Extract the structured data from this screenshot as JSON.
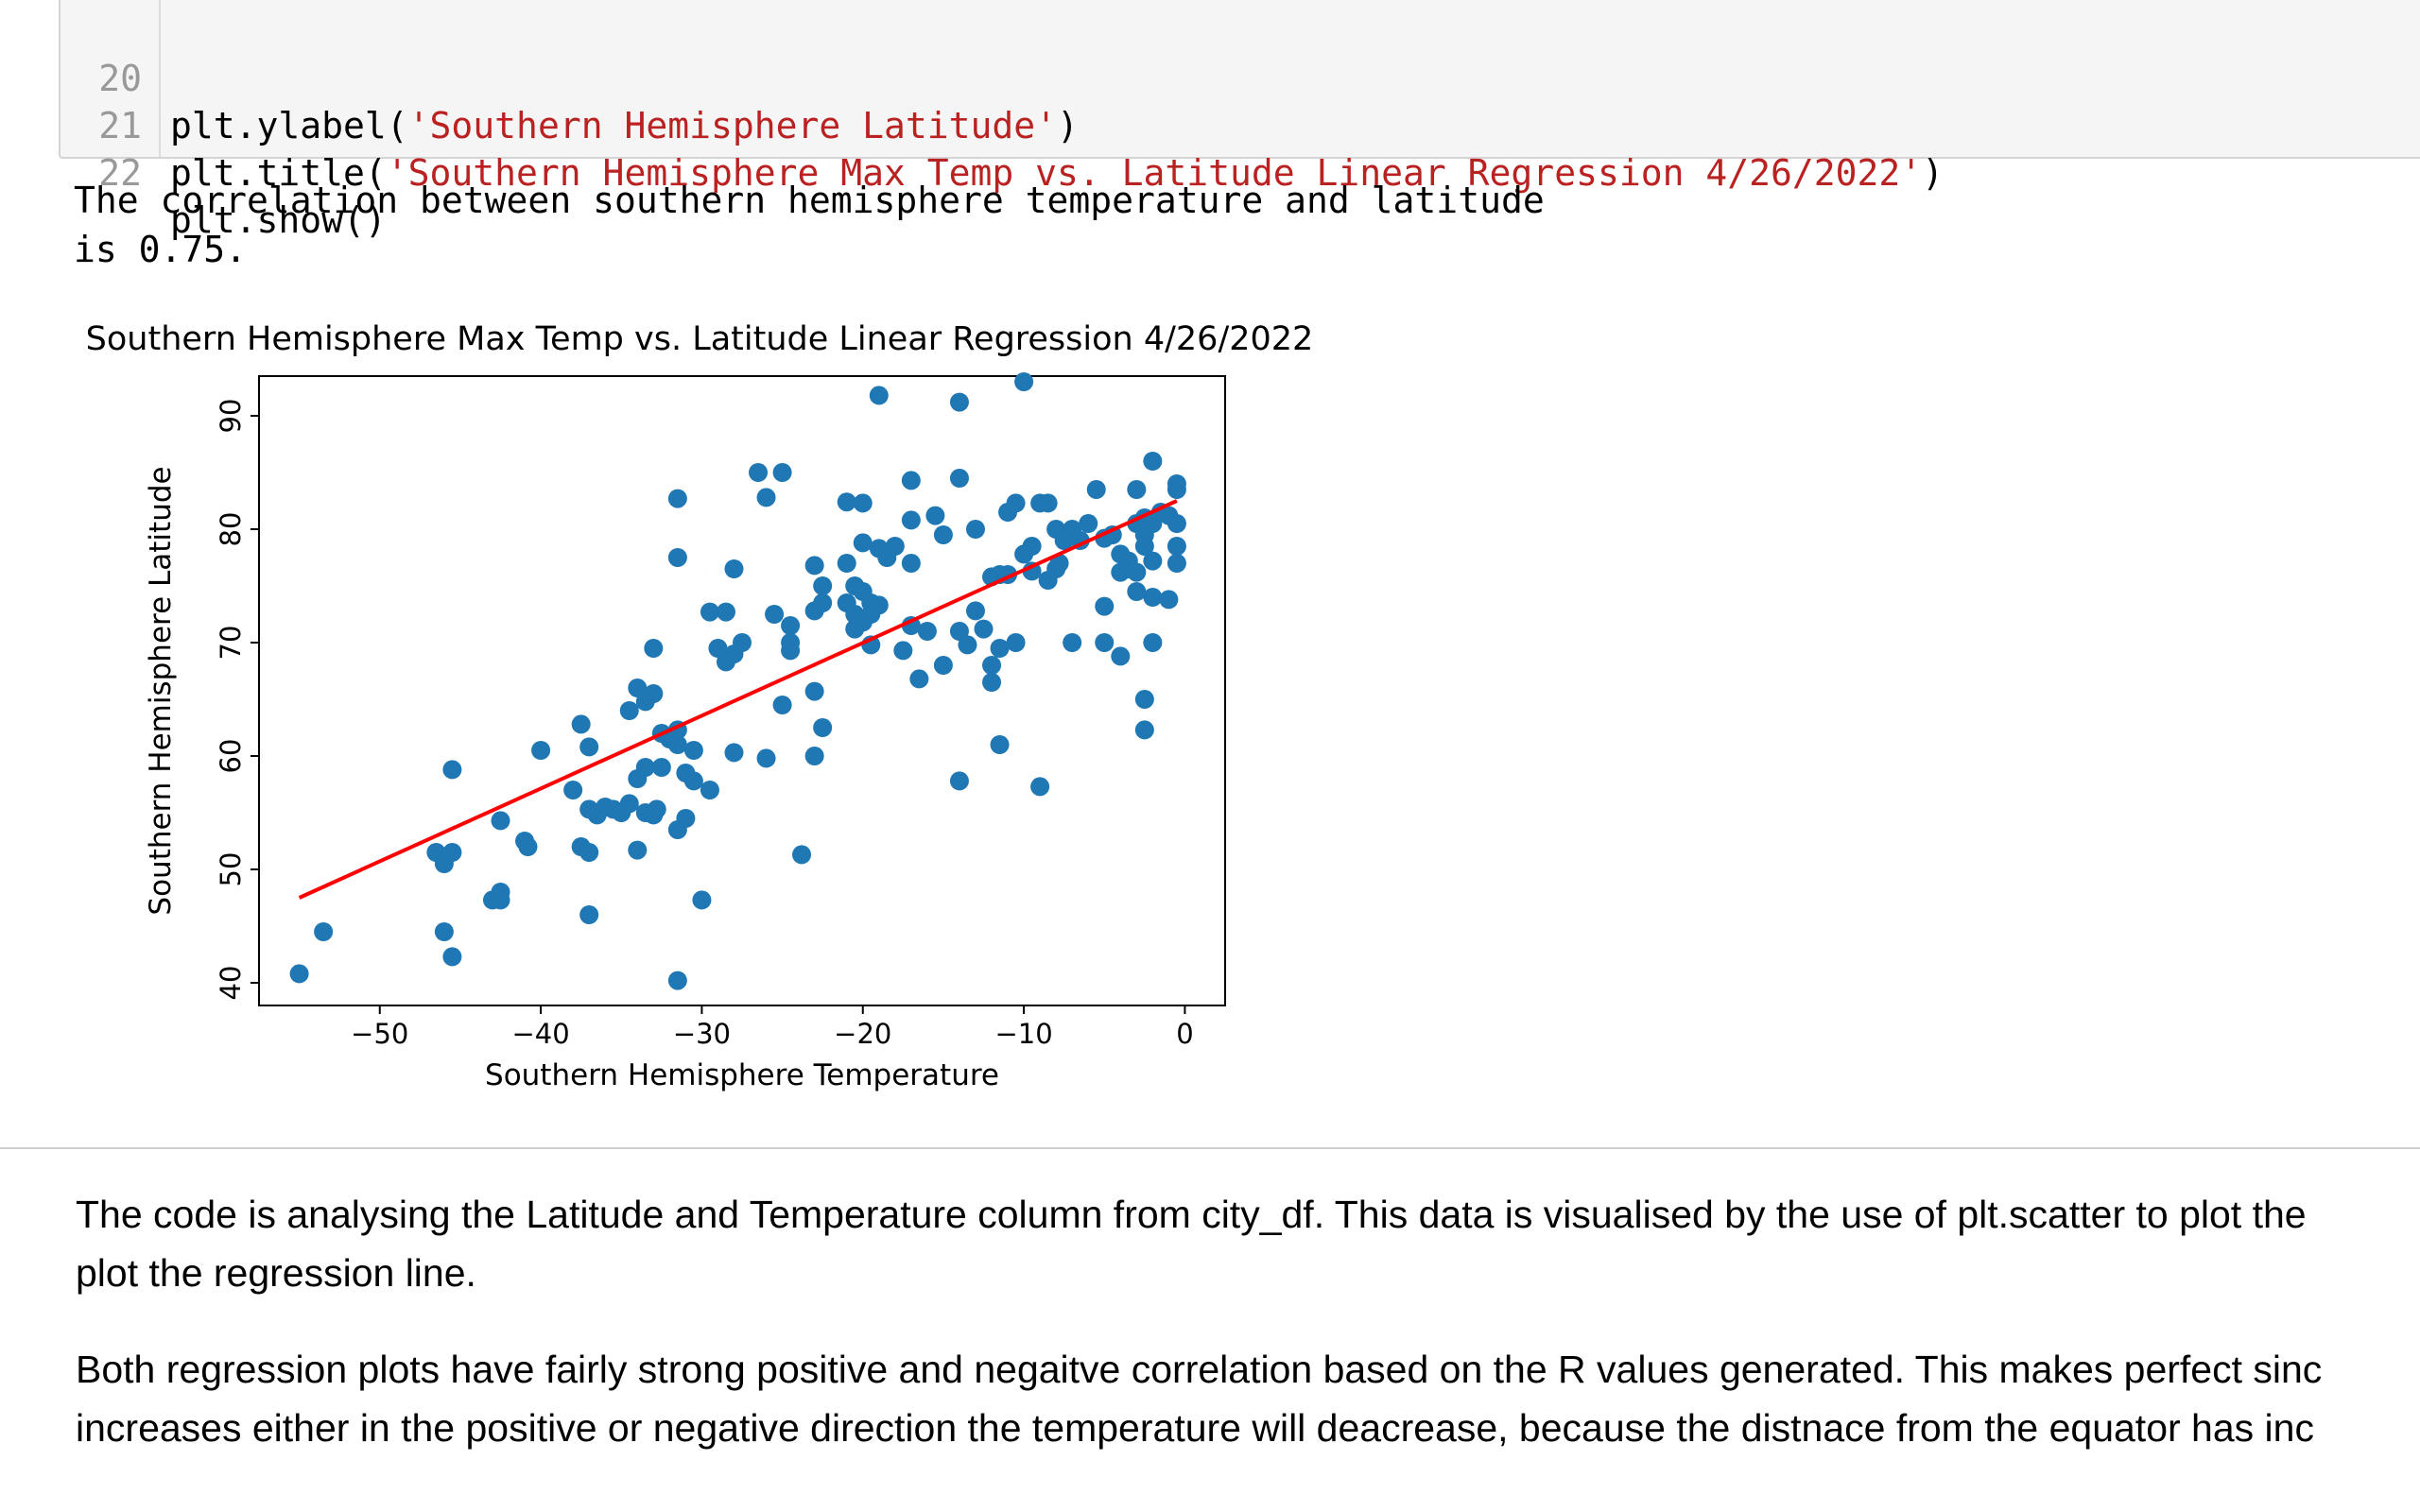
{
  "code_cell": {
    "lines": [
      {
        "num": "20",
        "pre": "plt.ylabel(",
        "str": "'Southern Hemisphere Latitude'",
        "post": ")"
      },
      {
        "num": "21",
        "pre": "plt.title(",
        "str": "'Southern Hemisphere Max Temp vs. Latitude Linear Regression 4/26/2022'",
        "post": ")"
      },
      {
        "num": "22",
        "pre": "plt.show()",
        "str": "",
        "post": ""
      }
    ]
  },
  "output": {
    "line1": "The correlation between southern hemisphere temperature and latitude",
    "line2": "is 0.75."
  },
  "chart_data": {
    "type": "scatter",
    "title": "Southern Hemisphere Max Temp vs. Latitude Linear Regression 4/26/2022",
    "xlabel": "Southern Hemisphere Temperature",
    "ylabel": "Southern Hemisphere Latitude",
    "xlim": [
      -57.5,
      2.5
    ],
    "ylim": [
      38,
      93.5
    ],
    "xticks": [
      -50,
      -40,
      -30,
      -20,
      -10,
      0
    ],
    "xtick_labels": [
      "−50",
      "−40",
      "−30",
      "−20",
      "−10",
      "0"
    ],
    "yticks": [
      40,
      50,
      60,
      70,
      80,
      90
    ],
    "yticks_labels": [
      "40",
      "50",
      "60",
      "70",
      "80",
      "90"
    ],
    "grid": false,
    "point_color": "#1f77b4",
    "line_color": "#ff0000",
    "regression": {
      "x": [
        -55,
        -0.5
      ],
      "y": [
        47.5,
        82.5
      ]
    },
    "points": [
      [
        -55,
        40.8
      ],
      [
        -53.5,
        44.5
      ],
      [
        -46,
        44.5
      ],
      [
        -45.5,
        42.3
      ],
      [
        -46.5,
        51.5
      ],
      [
        -46,
        50.5
      ],
      [
        -45.5,
        51.5
      ],
      [
        -45.5,
        58.8
      ],
      [
        -43,
        47.3
      ],
      [
        -42.5,
        48
      ],
      [
        -42.5,
        47.3
      ],
      [
        -42.5,
        54.3
      ],
      [
        -41,
        52.5
      ],
      [
        -40.8,
        52
      ],
      [
        -40,
        60.5
      ],
      [
        -38,
        57
      ],
      [
        -37.5,
        62.8
      ],
      [
        -37,
        60.8
      ],
      [
        -37,
        55.3
      ],
      [
        -37.5,
        52
      ],
      [
        -37,
        51.5
      ],
      [
        -36.5,
        54.8
      ],
      [
        -37,
        46
      ],
      [
        -36,
        55.5
      ],
      [
        -35.5,
        55.3
      ],
      [
        -35,
        55
      ],
      [
        -34.5,
        55.8
      ],
      [
        -34,
        58
      ],
      [
        -33.5,
        59
      ],
      [
        -33.5,
        55
      ],
      [
        -33,
        54.8
      ],
      [
        -32.8,
        55.3
      ],
      [
        -34,
        51.7
      ],
      [
        -34.5,
        64
      ],
      [
        -34,
        66
      ],
      [
        -33.5,
        64.8
      ],
      [
        -33,
        65.5
      ],
      [
        -33,
        69.5
      ],
      [
        -32.5,
        59
      ],
      [
        -32.5,
        62
      ],
      [
        -32,
        61.5
      ],
      [
        -31.5,
        62.3
      ],
      [
        -31.5,
        61
      ],
      [
        -31.5,
        53.5
      ],
      [
        -31,
        54.5
      ],
      [
        -31,
        58.5
      ],
      [
        -30.5,
        57.8
      ],
      [
        -30.5,
        60.5
      ],
      [
        -29.5,
        57
      ],
      [
        -31.5,
        40.2
      ],
      [
        -30,
        47.3
      ],
      [
        -31.5,
        82.7
      ],
      [
        -31.5,
        77.5
      ],
      [
        -29.5,
        72.7
      ],
      [
        -28.5,
        72.7
      ],
      [
        -28,
        76.5
      ],
      [
        -29,
        69.5
      ],
      [
        -28.5,
        68.3
      ],
      [
        -28,
        69
      ],
      [
        -27.5,
        70
      ],
      [
        -26.5,
        85
      ],
      [
        -26,
        82.8
      ],
      [
        -25,
        85
      ],
      [
        -25.5,
        72.5
      ],
      [
        -24.5,
        71.5
      ],
      [
        -24.5,
        70
      ],
      [
        -24.5,
        69.3
      ],
      [
        -25,
        64.5
      ],
      [
        -28,
        60.3
      ],
      [
        -26,
        59.8
      ],
      [
        -23.8,
        51.3
      ],
      [
        -23,
        60
      ],
      [
        -23,
        65.7
      ],
      [
        -22.5,
        62.5
      ],
      [
        -23,
        72.8
      ],
      [
        -22.5,
        73.5
      ],
      [
        -22.5,
        75
      ],
      [
        -23,
        76.8
      ],
      [
        -21,
        77
      ],
      [
        -21,
        82.4
      ],
      [
        -20,
        82.3
      ],
      [
        -20.5,
        75
      ],
      [
        -20,
        74.5
      ],
      [
        -21,
        73.5
      ],
      [
        -20.5,
        72.5
      ],
      [
        -20,
        71.8
      ],
      [
        -20.5,
        71.2
      ],
      [
        -19.5,
        73.5
      ],
      [
        -19.5,
        72.5
      ],
      [
        -19,
        73.3
      ],
      [
        -19.5,
        69.8
      ],
      [
        -20,
        78.8
      ],
      [
        -19,
        78.3
      ],
      [
        -18.5,
        77.5
      ],
      [
        -18,
        78.5
      ],
      [
        -19,
        91.8
      ],
      [
        -17,
        84.3
      ],
      [
        -17,
        80.8
      ],
      [
        -17,
        77
      ],
      [
        -15.5,
        81.2
      ],
      [
        -15,
        79.5
      ],
      [
        -14,
        84.5
      ],
      [
        -13,
        80
      ],
      [
        -14,
        91.2
      ],
      [
        -17.5,
        69.3
      ],
      [
        -17,
        71.5
      ],
      [
        -16,
        71
      ],
      [
        -16.5,
        66.8
      ],
      [
        -15,
        68
      ],
      [
        -14,
        71
      ],
      [
        -13.5,
        69.8
      ],
      [
        -13,
        72.8
      ],
      [
        -12.5,
        71.2
      ],
      [
        -11.5,
        76
      ],
      [
        -11,
        76
      ],
      [
        -12,
        75.8
      ],
      [
        -12,
        68
      ],
      [
        -11.5,
        69.5
      ],
      [
        -10.5,
        70
      ],
      [
        -12,
        66.5
      ],
      [
        -14,
        57.8
      ],
      [
        -11.5,
        61
      ],
      [
        -9,
        57.3
      ],
      [
        -11,
        81.5
      ],
      [
        -10.5,
        82.3
      ],
      [
        -9.5,
        78.5
      ],
      [
        -9,
        82.3
      ],
      [
        -8.5,
        82.3
      ],
      [
        -10,
        77.8
      ],
      [
        -9.5,
        76.3
      ],
      [
        -8.5,
        75.5
      ],
      [
        -8,
        76.5
      ],
      [
        -7.8,
        77
      ],
      [
        -8,
        80
      ],
      [
        -7.5,
        79
      ],
      [
        -7,
        80
      ],
      [
        -6.5,
        79
      ],
      [
        -6,
        80.5
      ],
      [
        -5.5,
        83.5
      ],
      [
        -5,
        79.2
      ],
      [
        -4.5,
        79.5
      ],
      [
        -4,
        77.8
      ],
      [
        -4,
        76.2
      ],
      [
        -3.5,
        77.2
      ],
      [
        -3.5,
        76.5
      ],
      [
        -3,
        76.2
      ],
      [
        -3,
        80.5
      ],
      [
        -3,
        83.5
      ],
      [
        -2.5,
        81
      ],
      [
        -2.5,
        79.5
      ],
      [
        -2.5,
        78.5
      ],
      [
        -2,
        77.2
      ],
      [
        -2,
        80.5
      ],
      [
        -1.5,
        81.5
      ],
      [
        -2,
        86
      ],
      [
        -1,
        81.2
      ],
      [
        -3,
        74.5
      ],
      [
        -2,
        74
      ],
      [
        -1,
        73.8
      ],
      [
        -5,
        73.2
      ],
      [
        -5,
        70
      ],
      [
        -4,
        68.8
      ],
      [
        -2,
        70
      ],
      [
        -7,
        70
      ],
      [
        -2.5,
        65
      ],
      [
        -2.5,
        62.3
      ],
      [
        -10,
        93
      ],
      [
        -0.5,
        84
      ],
      [
        -0.5,
        83.5
      ],
      [
        -0.5,
        80.5
      ],
      [
        -0.5,
        78.5
      ],
      [
        -0.5,
        77
      ]
    ]
  },
  "markdown": {
    "para1_line1": "The code is analysing the Latitude and Temperature column from city_df. This data is visualised by the use of plt.scatter to plot the",
    "para1_line2": "plot the regression line.",
    "para2_line1": "Both regression plots have fairly strong positive and negaitve correlation based on the R values generated. This makes perfect sinc",
    "para2_line2": "increases either in the positive or negative direction the temperature will deacrease, because the distnace from the equator has inc"
  }
}
